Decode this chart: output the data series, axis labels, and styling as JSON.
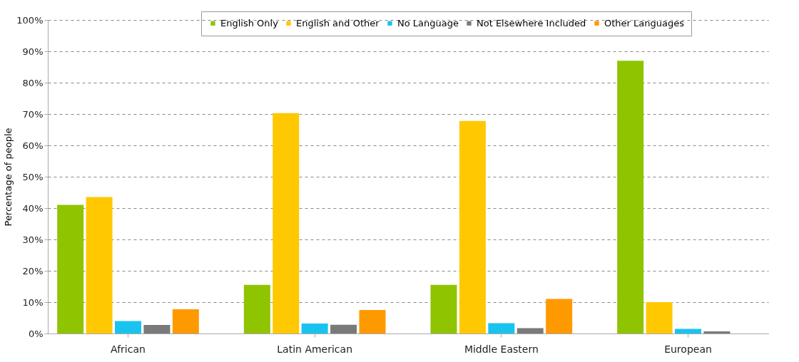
{
  "chart_data": {
    "type": "bar",
    "ylabel": "Percentage of people",
    "categories": [
      "African",
      "Latin American",
      "Middle Eastern",
      "European"
    ],
    "series": [
      {
        "name": "English Only",
        "color": "#8fc400",
        "values": [
          41,
          15.5,
          15.5,
          87
        ]
      },
      {
        "name": "English and Other",
        "color": "#ffc800",
        "values": [
          43.5,
          70.3,
          67.8,
          10
        ]
      },
      {
        "name": "No Language",
        "color": "#19c3f0",
        "values": [
          4,
          3.2,
          3.3,
          1.5
        ]
      },
      {
        "name": "Not Elsewhere Included",
        "color": "#7a7a7a",
        "values": [
          2.7,
          2.8,
          1.7,
          0.7
        ]
      },
      {
        "name": "Other Languages",
        "color": "#ff9900",
        "values": [
          7.7,
          7.5,
          11,
          0
        ]
      }
    ],
    "ylim": [
      0,
      100
    ],
    "yticks": [
      {
        "value": 0,
        "label": "0%"
      },
      {
        "value": 10,
        "label": "10%"
      },
      {
        "value": 20,
        "label": "20%"
      },
      {
        "value": 30,
        "label": "30%"
      },
      {
        "value": 40,
        "label": "40%"
      },
      {
        "value": 50,
        "label": "50%"
      },
      {
        "value": 60,
        "label": "60%"
      },
      {
        "value": 70,
        "label": "70%"
      },
      {
        "value": 80,
        "label": "80%"
      },
      {
        "value": 90,
        "label": "90%"
      },
      {
        "value": 100,
        "label": "100%"
      }
    ],
    "grid": "y",
    "legend": "top"
  }
}
